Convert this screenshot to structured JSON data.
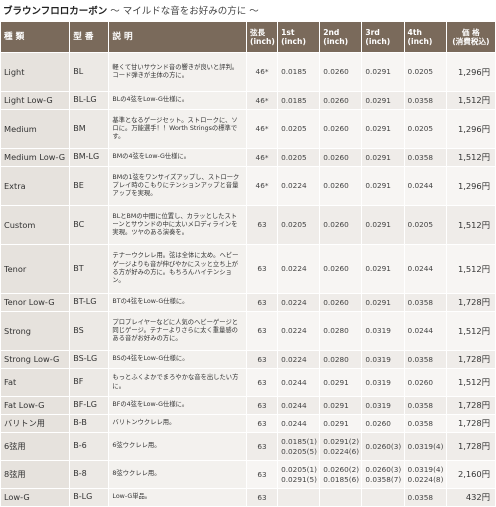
{
  "header": {
    "title": "ブラウンフロロカーボン",
    "subtitle": "〜 マイルドな音をお好みの方に 〜"
  },
  "columns": {
    "type": "種 類",
    "code": "型 番",
    "desc": "説 明",
    "length": "弦長\n(inch)",
    "s1": "1st\n(inch)",
    "s2": "2nd\n(inch)",
    "s3": "3rd\n(inch)",
    "s4": "4th\n(inch)",
    "price": "価 格\n(消費税込)"
  },
  "rows": [
    {
      "name": "Light",
      "code": "BL",
      "desc": "軽くて甘いサウンド音の響きが良いと評判。コード弾きが主体の方に。",
      "length": "46*",
      "s1": "0.0185",
      "s2": "0.0260",
      "s3": "0.0291",
      "s4": "0.0205",
      "price": "1,296円"
    },
    {
      "name": "Light Low-G",
      "code": "BL-LG",
      "desc": "BLの4弦をLow-G仕様に。",
      "length": "46*",
      "s1": "0.0185",
      "s2": "0.0260",
      "s3": "0.0291",
      "s4": "0.0358",
      "price": "1,512円"
    },
    {
      "name": "Medium",
      "code": "BM",
      "desc": "基準となるゲージセット。ストロークに、ソロに。万能選手！！Worth Stringsの標準です。",
      "length": "46*",
      "s1": "0.0205",
      "s2": "0.0260",
      "s3": "0.0291",
      "s4": "0.0205",
      "price": "1,296円"
    },
    {
      "name": "Medium Low-G",
      "code": "BM-LG",
      "desc": "BMの4弦をLow-G仕様に。",
      "length": "46*",
      "s1": "0.0205",
      "s2": "0.0260",
      "s3": "0.0291",
      "s4": "0.0358",
      "price": "1,512円"
    },
    {
      "name": "Extra",
      "code": "BE",
      "desc": "BMの1弦をワンサイズアップし、ストロークプレイ時のこもりにテンションアップと音量アップを実現。",
      "length": "46*",
      "s1": "0.0224",
      "s2": "0.0260",
      "s3": "0.0291",
      "s4": "0.0244",
      "price": "1,296円"
    },
    {
      "name": "Custom",
      "code": "BC",
      "desc": "BLとBMの中間に位置し、カラッとしたストーンとサウンドの中に太いメロディラインを実現。ツヤのある演奏を。",
      "length": "63",
      "s1": "0.0205",
      "s2": "0.0260",
      "s3": "0.0291",
      "s4": "0.0205",
      "price": "1,512円"
    },
    {
      "name": "Tenor",
      "code": "BT",
      "desc": "テナーウクレレ用。弦は全体に太め。ヘビーゲージよりも音が伸びやかにスッと立ち上がる方が好みの方に。もちろんハイテンション。",
      "length": "63",
      "s1": "0.0224",
      "s2": "0.0260",
      "s3": "0.0291",
      "s4": "0.0244",
      "price": "1,512円"
    },
    {
      "name": "Tenor Low-G",
      "code": "BT-LG",
      "desc": "BTの4弦をLow-G仕様に。",
      "length": "63",
      "s1": "0.0224",
      "s2": "0.0260",
      "s3": "0.0291",
      "s4": "0.0358",
      "price": "1,728円"
    },
    {
      "name": "Strong",
      "code": "BS",
      "desc": "プロプレイヤーなどに人気のヘビーゲージと同じゲージ。テナーよりさらに太く重量感のある音がお好みの方に。",
      "length": "63",
      "s1": "0.0224",
      "s2": "0.0280",
      "s3": "0.0319",
      "s4": "0.0244",
      "price": "1,512円"
    },
    {
      "name": "Strong Low-G",
      "code": "BS-LG",
      "desc": "BSの4弦をLow-G仕様に。",
      "length": "63",
      "s1": "0.0224",
      "s2": "0.0280",
      "s3": "0.0319",
      "s4": "0.0358",
      "price": "1,728円"
    },
    {
      "name": "Fat",
      "code": "BF",
      "desc": "もっとふくよかでまろやかな音を出したい方に。",
      "length": "63",
      "s1": "0.0244",
      "s2": "0.0291",
      "s3": "0.0319",
      "s4": "0.0260",
      "price": "1,512円"
    },
    {
      "name": "Fat Low-G",
      "code": "BF-LG",
      "desc": "BFの4弦をLow-G仕様に。",
      "length": "63",
      "s1": "0.0244",
      "s2": "0.0291",
      "s3": "0.0319",
      "s4": "0.0358",
      "price": "1,728円"
    },
    {
      "name": "バリトン用",
      "code": "B-B",
      "desc": "バリトンウクレレ用。",
      "length": "63",
      "s1": "0.0244",
      "s2": "0.0291",
      "s3": "0.0260",
      "s4": "0.0358",
      "price": "1,728円"
    },
    {
      "name": "6弦用",
      "code": "B-6",
      "desc": "6弦ウクレレ用。",
      "length": "63",
      "s1": "0.0185(1)\n0.0205(5)",
      "s2": "0.0291(2)\n0.0224(6)",
      "s3": "0.0260(3)",
      "s4": "0.0319(4)",
      "price": "1,728円"
    },
    {
      "name": "8弦用",
      "code": "B-8",
      "desc": "8弦ウクレレ用。",
      "length": "63",
      "s1": "0.0205(1)\n0.0291(5)",
      "s2": "0.0260(2)\n0.0185(6)",
      "s3": "0.0260(3)\n0.0358(7)",
      "s4": "0.0319(4)\n0.0224(8)",
      "price": "2,160円"
    },
    {
      "name": "Low-G",
      "code": "B-LG",
      "desc": "Low-G単品。",
      "length": "63",
      "s1": "",
      "s2": "",
      "s3": "",
      "s4": "0.0358",
      "price": "432円"
    }
  ]
}
